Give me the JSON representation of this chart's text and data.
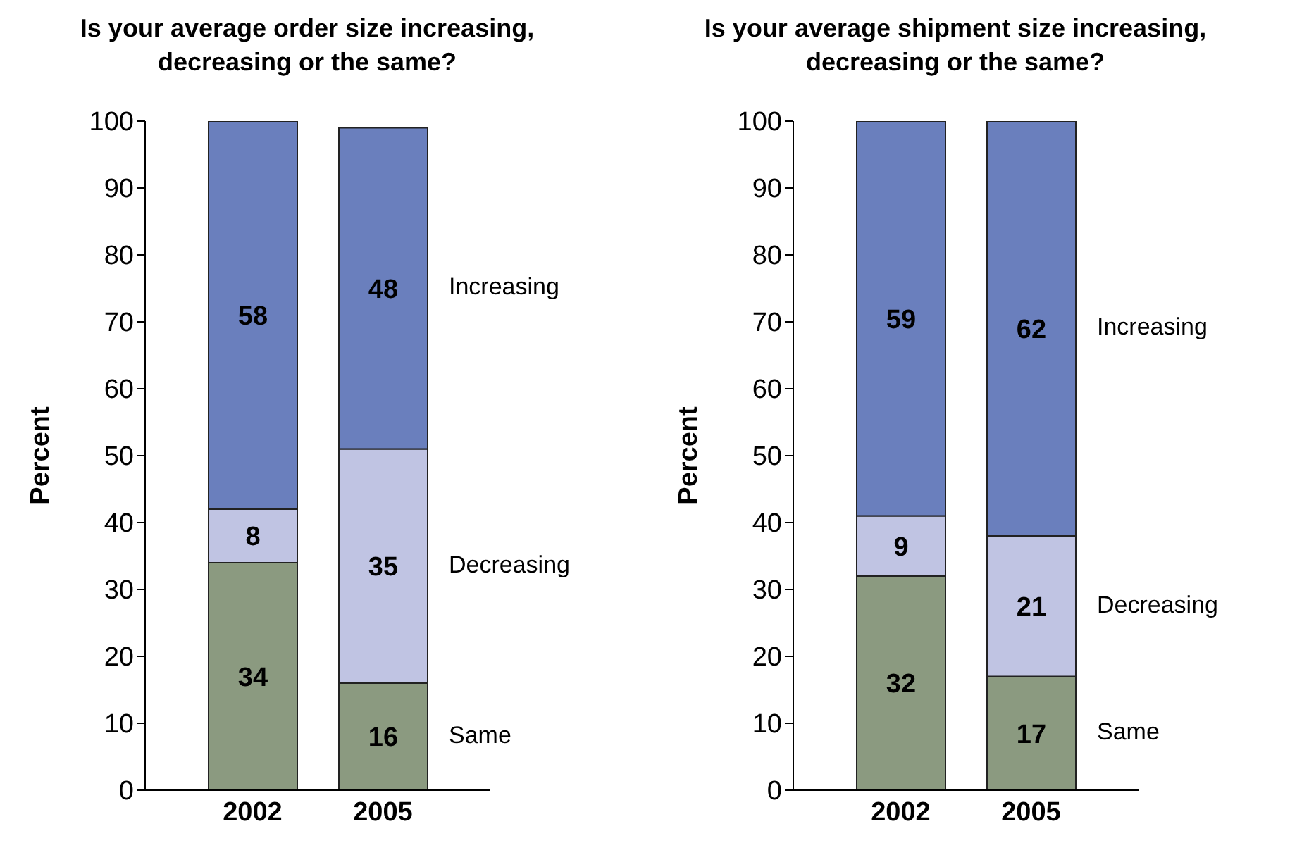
{
  "chart_data": [
    {
      "type": "bar",
      "stacked": true,
      "title": "Is your average order size increasing, decreasing or the same?",
      "ylabel": "Percent",
      "categories": [
        "2002",
        "2005"
      ],
      "ylim": [
        0,
        100
      ],
      "yticks": [
        0,
        10,
        20,
        30,
        40,
        50,
        60,
        70,
        80,
        90,
        100
      ],
      "data_labels": true,
      "series": [
        {
          "name": "Same",
          "color": "#8b9a80",
          "values": [
            34,
            16
          ]
        },
        {
          "name": "Decreasing",
          "color": "#c0c4e3",
          "values": [
            8,
            35
          ]
        },
        {
          "name": "Increasing",
          "color": "#6a7fbd",
          "values": [
            58,
            48
          ]
        }
      ]
    },
    {
      "type": "bar",
      "stacked": true,
      "title": "Is your average shipment size increasing, decreasing or the same?",
      "ylabel": "Percent",
      "categories": [
        "2002",
        "2005"
      ],
      "ylim": [
        0,
        100
      ],
      "yticks": [
        0,
        10,
        20,
        30,
        40,
        50,
        60,
        70,
        80,
        90,
        100
      ],
      "data_labels": true,
      "series": [
        {
          "name": "Same",
          "color": "#8b9a80",
          "values": [
            32,
            17
          ]
        },
        {
          "name": "Decreasing",
          "color": "#c0c4e3",
          "values": [
            9,
            21
          ]
        },
        {
          "name": "Increasing",
          "color": "#6a7fbd",
          "values": [
            59,
            62
          ]
        }
      ]
    }
  ]
}
